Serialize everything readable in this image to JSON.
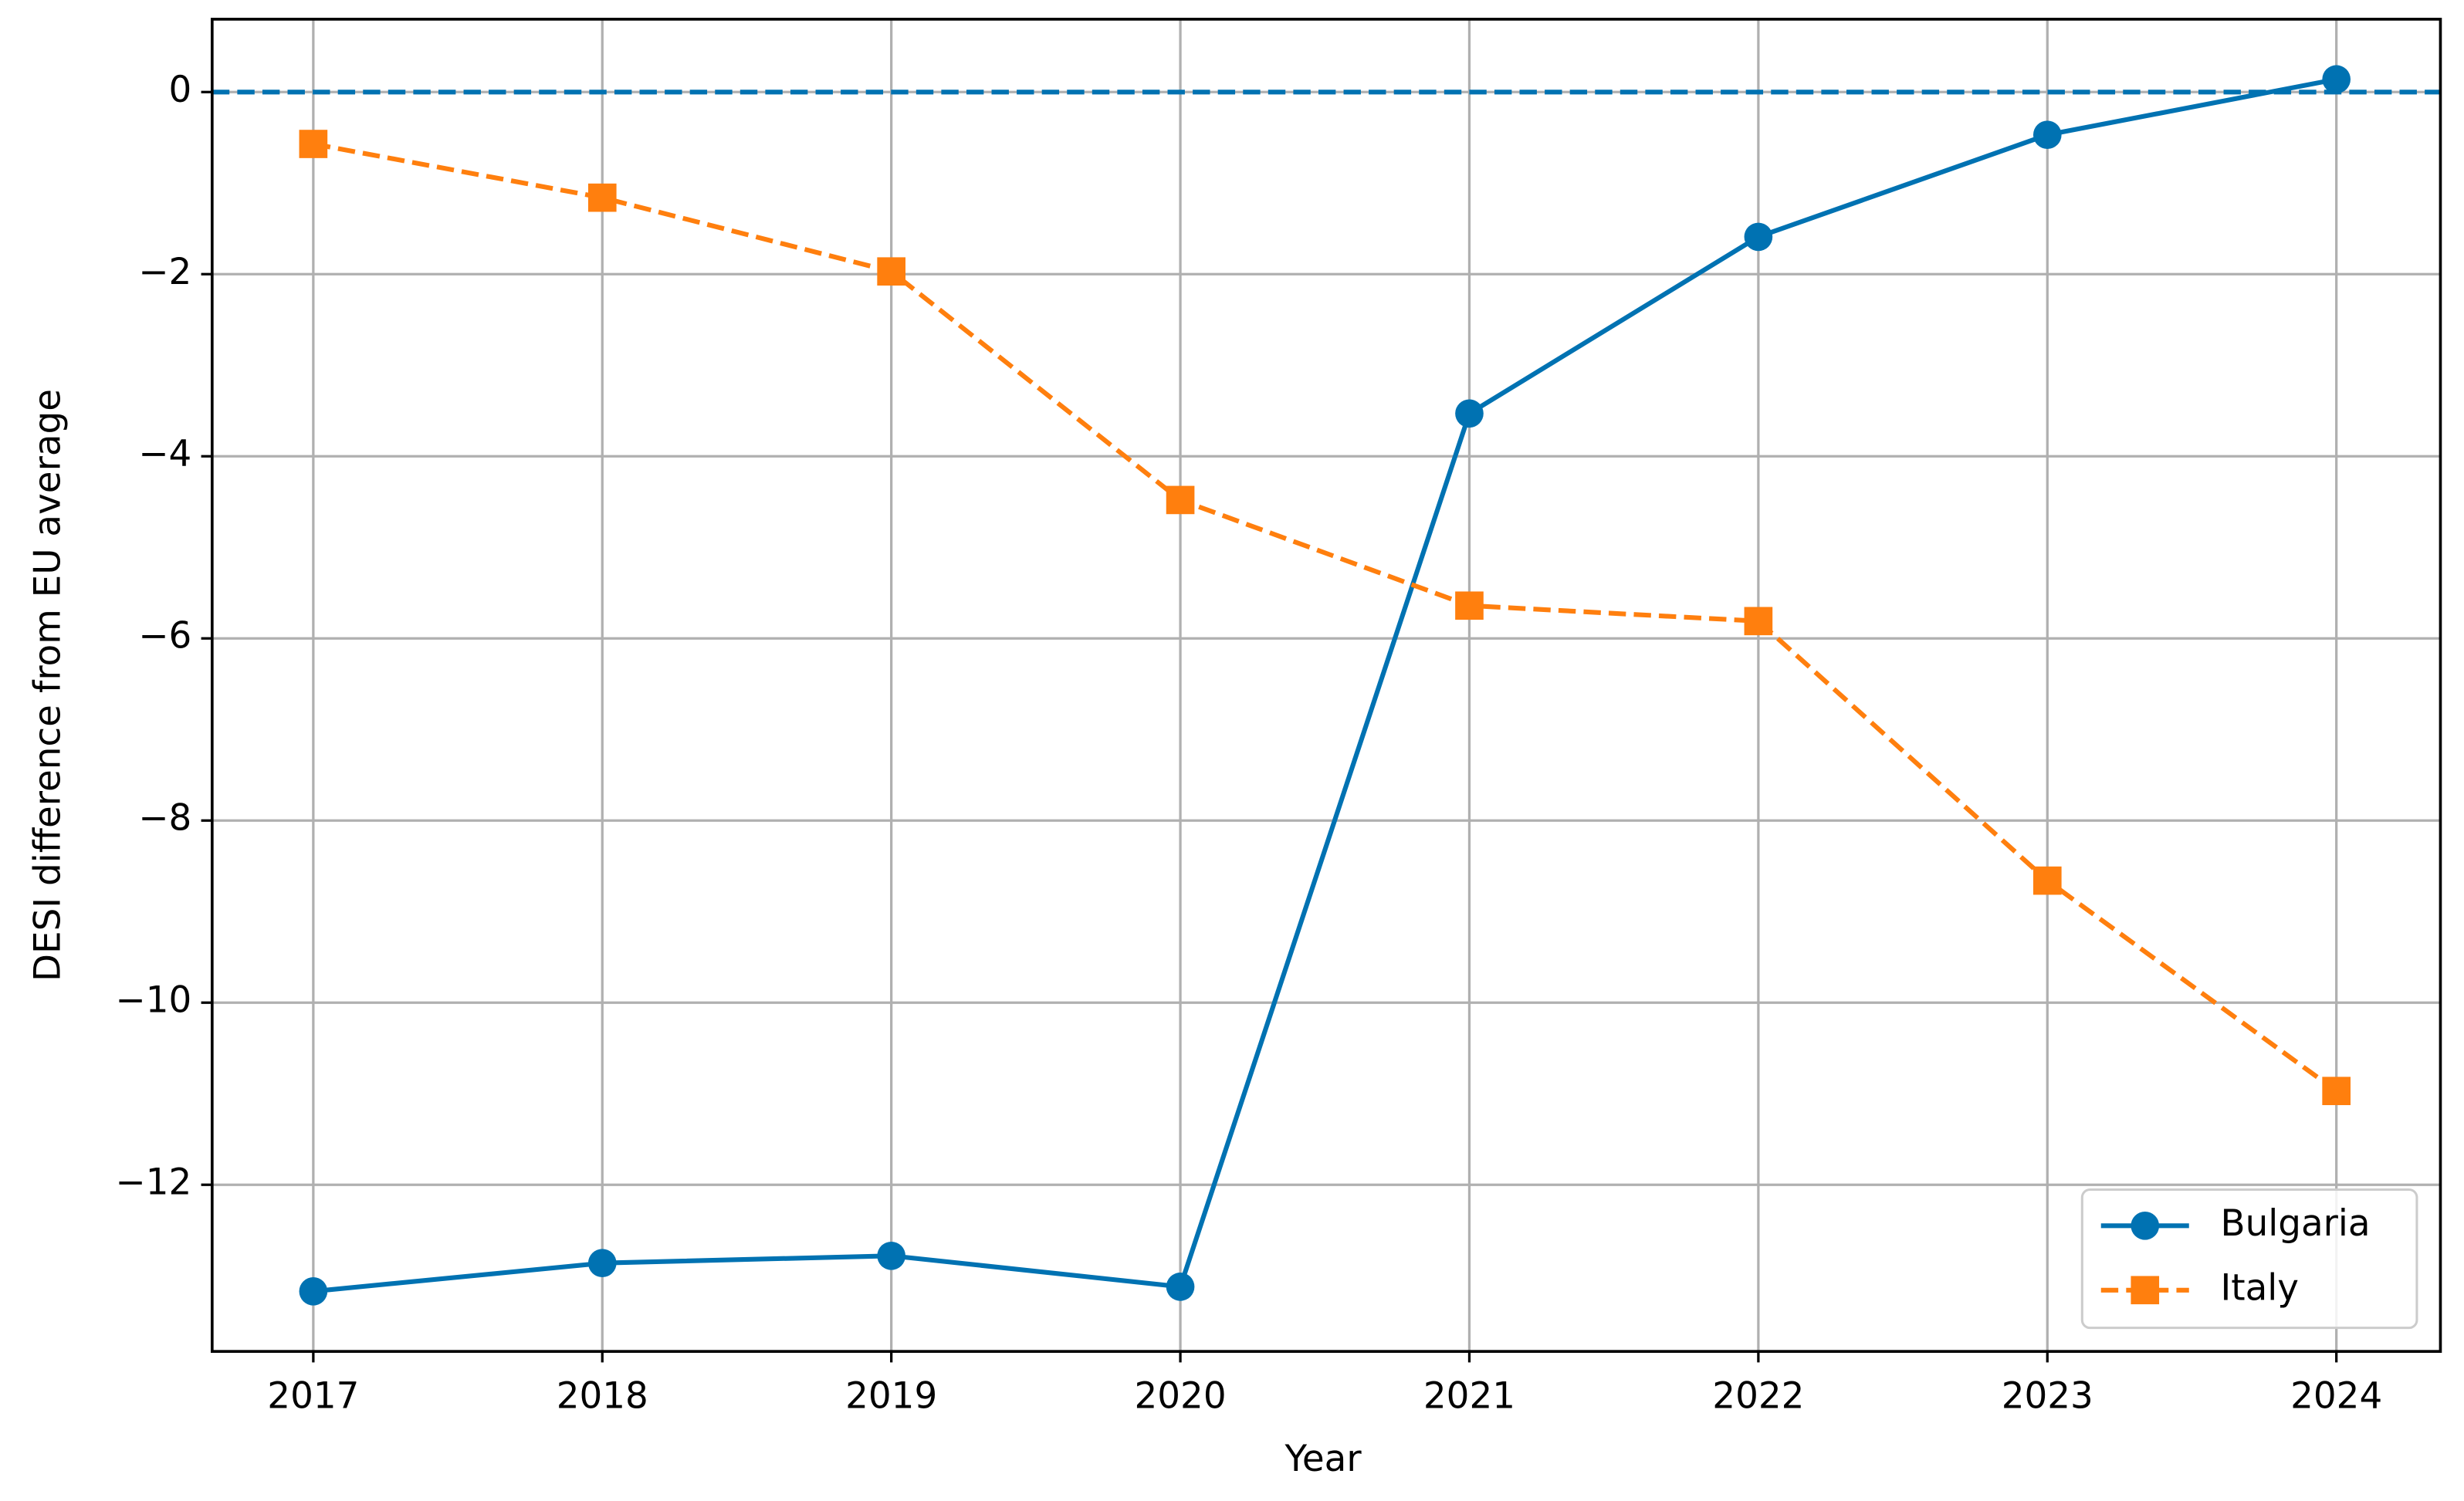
{
  "chart_data": {
    "type": "line",
    "x_label": "Year",
    "y_label": "DESI difference from EU average",
    "x": [
      2017,
      2018,
      2019,
      2020,
      2021,
      2022,
      2023,
      2024
    ],
    "series": [
      {
        "name": "Bulgaria",
        "color": "#0072b2",
        "marker": "circle",
        "line_style": "solid",
        "values": [
          -13.17,
          -12.86,
          -12.78,
          -13.12,
          -3.53,
          -1.59,
          -0.47,
          0.14
        ]
      },
      {
        "name": "Italy",
        "color": "#ff7f0e",
        "marker": "square",
        "line_style": "dashed",
        "values": [
          -0.57,
          -1.16,
          -1.97,
          -4.48,
          -5.64,
          -5.81,
          -8.66,
          -10.97
        ]
      }
    ],
    "reference_line": {
      "y": 0,
      "color": "#0072b2",
      "line_style": "dashed"
    },
    "xlim": [
      2016.65,
      2024.36
    ],
    "ylim": [
      -13.83,
      0.8
    ],
    "xticks": [
      2017,
      2018,
      2019,
      2020,
      2021,
      2022,
      2023,
      2024
    ],
    "yticks": [
      0,
      {
        "value": -2,
        "label": "−2"
      },
      {
        "value": -4,
        "label": "−4"
      },
      {
        "value": -6,
        "label": "−6"
      },
      {
        "value": -8,
        "label": "−8"
      },
      {
        "value": -10,
        "label": "−10"
      },
      {
        "value": -12,
        "label": "−12"
      }
    ],
    "grid": true,
    "legend": "lower right"
  }
}
